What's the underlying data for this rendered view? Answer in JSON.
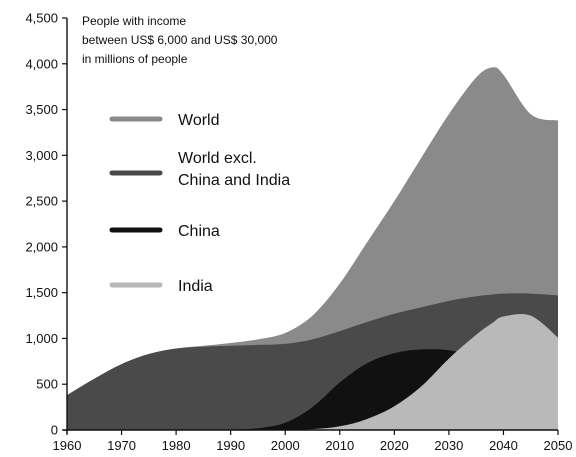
{
  "chart_data": {
    "type": "area",
    "title_lines": [
      "People with income",
      "between US$ 6,000 and US$ 30,000",
      "in millions of people"
    ],
    "xlabel": "",
    "ylabel": "",
    "xlim": [
      1960,
      2050
    ],
    "ylim": [
      0,
      4500
    ],
    "x_ticks": [
      1960,
      1970,
      1980,
      1990,
      2000,
      2010,
      2020,
      2030,
      2040,
      2050
    ],
    "y_ticks": [
      0,
      500,
      1000,
      1500,
      2000,
      2500,
      3000,
      3500,
      4000,
      4500
    ],
    "y_tick_labels": [
      "0",
      "500",
      "1,000",
      "1,500",
      "2,000",
      "2,500",
      "3,000",
      "3,500",
      "4,000",
      "4,500"
    ],
    "x": [
      1960,
      1965,
      1970,
      1975,
      1980,
      1985,
      1990,
      1995,
      2000,
      2005,
      2010,
      2015,
      2020,
      2025,
      2030,
      2035,
      2038,
      2040,
      2045,
      2050
    ],
    "legend": {
      "placement": "upper-left inside plot",
      "entries": [
        {
          "key": "world",
          "label_lines": [
            "World"
          ]
        },
        {
          "key": "world_excl",
          "label_lines": [
            "World excl.",
            "China and India"
          ]
        },
        {
          "key": "china",
          "label_lines": [
            "China"
          ]
        },
        {
          "key": "india",
          "label_lines": [
            "India"
          ]
        }
      ]
    },
    "series": [
      {
        "key": "world",
        "name": "World",
        "color": "#8a8a8a",
        "values": [
          380,
          560,
          720,
          830,
          890,
          920,
          950,
          990,
          1060,
          1250,
          1600,
          2050,
          2500,
          2980,
          3450,
          3850,
          3960,
          3880,
          3450,
          3380
        ]
      },
      {
        "key": "world_excl",
        "name": "World excl. China and India",
        "color": "#4a4a4a",
        "values": [
          380,
          560,
          720,
          830,
          890,
          910,
          920,
          930,
          940,
          990,
          1080,
          1180,
          1270,
          1340,
          1410,
          1460,
          1480,
          1490,
          1490,
          1470
        ]
      },
      {
        "key": "china",
        "name": "China",
        "color": "#111111",
        "values": [
          0,
          0,
          0,
          0,
          0,
          0,
          5,
          20,
          80,
          250,
          520,
          730,
          840,
          880,
          870,
          790,
          720,
          650,
          500,
          330
        ]
      },
      {
        "key": "india",
        "name": "India",
        "color": "#b9b9b9",
        "values": [
          0,
          0,
          0,
          0,
          0,
          0,
          0,
          0,
          0,
          10,
          40,
          120,
          260,
          480,
          780,
          1040,
          1170,
          1240,
          1250,
          1010
        ]
      }
    ]
  }
}
